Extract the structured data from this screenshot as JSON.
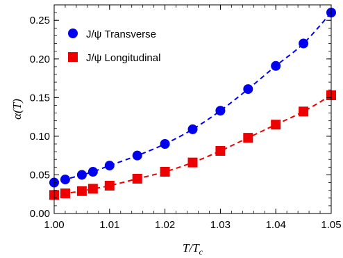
{
  "chart_data": {
    "type": "scatter",
    "xlabel": "T/T_c",
    "ylabel": "α(T)",
    "xlim": [
      1.0,
      1.05
    ],
    "ylim": [
      0.0,
      0.27
    ],
    "xticks": [
      1.0,
      1.01,
      1.02,
      1.03,
      1.04,
      1.05
    ],
    "xtick_labels": [
      "1.00",
      "1.01",
      "1.02",
      "1.03",
      "1.04",
      "1.05"
    ],
    "yticks": [
      0.0,
      0.05,
      0.1,
      0.15,
      0.2,
      0.25
    ],
    "ytick_labels": [
      "0.00",
      "0.05",
      "0.10",
      "0.15",
      "0.20",
      "0.25"
    ],
    "grid": false,
    "legend_position": "top-left",
    "series": [
      {
        "name": "J/ψ Transverse",
        "marker": "circle",
        "color": "#0000ee",
        "fit_line": "dashed",
        "x": [
          1.0,
          1.002,
          1.005,
          1.007,
          1.01,
          1.015,
          1.02,
          1.025,
          1.03,
          1.035,
          1.04,
          1.045,
          1.05
        ],
        "y": [
          0.04,
          0.044,
          0.05,
          0.054,
          0.062,
          0.075,
          0.09,
          0.109,
          0.133,
          0.161,
          0.191,
          0.22,
          0.26
        ]
      },
      {
        "name": "J/ψ Longitudinal",
        "marker": "square",
        "color": "#ee0000",
        "fit_line": "dashed",
        "x": [
          1.0,
          1.002,
          1.005,
          1.007,
          1.01,
          1.015,
          1.02,
          1.025,
          1.03,
          1.035,
          1.04,
          1.045,
          1.05
        ],
        "y": [
          0.024,
          0.026,
          0.029,
          0.032,
          0.036,
          0.045,
          0.054,
          0.066,
          0.081,
          0.098,
          0.115,
          0.132,
          0.153
        ]
      }
    ]
  }
}
